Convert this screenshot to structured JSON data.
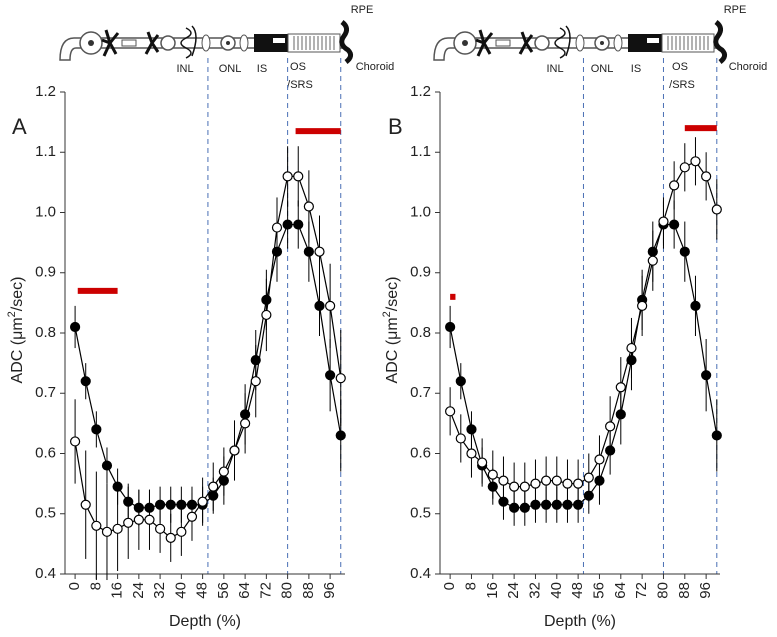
{
  "chart_data": [
    {
      "type": "line",
      "panel_label": "A",
      "xlabel": "Depth (%)",
      "ylabel_parts": [
        "ADC (μm",
        "2",
        "/sec)"
      ],
      "layer_labels": [
        "RPE",
        "INL",
        "ONL",
        "IS",
        "OS",
        "/SRS",
        "Choroid"
      ],
      "boundaries": [
        50,
        80,
        100
      ],
      "xlim": [
        -3.8,
        101.6
      ],
      "ylim": [
        0.4,
        1.2
      ],
      "xticks": [
        0,
        8,
        16,
        24,
        32,
        40,
        48,
        56,
        64,
        72,
        80,
        88,
        96
      ],
      "yticks": [
        0.4,
        0.5,
        0.6,
        0.7,
        0.8,
        0.9,
        {
          "value": 1,
          "label": "1.0"
        },
        1.1,
        1.2
      ],
      "x": [
        0,
        4,
        8,
        12,
        16,
        20,
        24,
        28,
        32,
        36,
        40,
        44,
        48,
        52,
        56,
        60,
        64,
        68,
        72,
        76,
        80,
        84,
        88,
        92,
        96,
        100
      ],
      "series": [
        {
          "marker": "filled",
          "color": "#000000",
          "values": [
            0.81,
            0.72,
            0.64,
            0.58,
            0.545,
            0.52,
            0.51,
            0.51,
            0.515,
            0.515,
            0.515,
            0.515,
            0.515,
            0.53,
            0.555,
            0.605,
            0.665,
            0.755,
            0.855,
            0.935,
            0.98,
            0.98,
            0.935,
            0.845,
            0.73,
            0.63
          ],
          "errors": [
            0.035,
            0.03,
            0.03,
            0.03,
            0.03,
            0.03,
            0.03,
            0.03,
            0.03,
            0.03,
            0.03,
            0.03,
            0.03,
            0.03,
            0.04,
            0.04,
            0.05,
            0.05,
            0.05,
            0.05,
            0.04,
            0.04,
            0.05,
            0.05,
            0.06,
            0.06
          ]
        },
        {
          "marker": "open",
          "color": "#000000",
          "values": [
            0.62,
            0.515,
            0.48,
            0.47,
            0.475,
            0.485,
            0.49,
            0.49,
            0.475,
            0.46,
            0.47,
            0.495,
            0.52,
            0.545,
            0.57,
            0.605,
            0.65,
            0.72,
            0.83,
            0.975,
            1.06,
            1.06,
            1.01,
            0.935,
            0.845,
            0.725
          ],
          "errors": [
            0.07,
            0.09,
            0.09,
            0.08,
            0.07,
            0.06,
            0.05,
            0.05,
            0.04,
            0.04,
            0.04,
            0.04,
            0.04,
            0.04,
            0.04,
            0.05,
            0.05,
            0.06,
            0.06,
            0.05,
            0.05,
            0.05,
            0.06,
            0.06,
            0.07,
            0.08
          ]
        }
      ],
      "significance_bars": {
        "color": "#cc0000",
        "ranges": [
          {
            "x": [
              1,
              16
            ],
            "y": 0.87
          },
          {
            "x": [
              83,
              100
            ],
            "y": 1.135
          }
        ]
      }
    },
    {
      "type": "line",
      "panel_label": "B",
      "xlabel": "Depth (%)",
      "ylabel_parts": [
        "ADC (μm",
        "2",
        "/sec)"
      ],
      "layer_labels": [
        "RPE",
        "INL",
        "ONL",
        "IS",
        "OS",
        "/SRS",
        "Choroid"
      ],
      "boundaries": [
        50,
        80,
        100
      ],
      "xlim": [
        -3.8,
        101.2
      ],
      "ylim": [
        0.4,
        1.2
      ],
      "xticks": [
        0,
        8,
        16,
        24,
        32,
        40,
        48,
        56,
        64,
        72,
        80,
        88,
        96
      ],
      "yticks": [
        0.4,
        0.5,
        0.6,
        0.7,
        0.8,
        0.9,
        {
          "value": 1,
          "label": "1.0"
        },
        1.1,
        1.2
      ],
      "x": [
        0,
        4,
        8,
        12,
        16,
        20,
        24,
        28,
        32,
        36,
        40,
        44,
        48,
        52,
        56,
        60,
        64,
        68,
        72,
        76,
        80,
        84,
        88,
        92,
        96,
        100
      ],
      "series": [
        {
          "marker": "filled",
          "color": "#000000",
          "values": [
            0.81,
            0.72,
            0.64,
            0.58,
            0.545,
            0.52,
            0.51,
            0.51,
            0.515,
            0.515,
            0.515,
            0.515,
            0.515,
            0.53,
            0.555,
            0.605,
            0.665,
            0.755,
            0.855,
            0.935,
            0.98,
            0.98,
            0.935,
            0.845,
            0.73,
            0.63
          ],
          "errors": [
            0.035,
            0.03,
            0.03,
            0.03,
            0.03,
            0.03,
            0.03,
            0.03,
            0.03,
            0.03,
            0.03,
            0.03,
            0.03,
            0.03,
            0.04,
            0.04,
            0.05,
            0.05,
            0.05,
            0.05,
            0.04,
            0.04,
            0.05,
            0.05,
            0.06,
            0.06
          ]
        },
        {
          "marker": "open",
          "color": "#000000",
          "values": [
            0.67,
            0.625,
            0.6,
            0.585,
            0.565,
            0.555,
            0.545,
            0.545,
            0.55,
            0.555,
            0.555,
            0.55,
            0.55,
            0.56,
            0.59,
            0.645,
            0.71,
            0.775,
            0.845,
            0.92,
            0.985,
            1.045,
            1.075,
            1.085,
            1.06,
            1.005
          ],
          "errors": [
            0.04,
            0.04,
            0.04,
            0.04,
            0.04,
            0.04,
            0.04,
            0.04,
            0.04,
            0.04,
            0.04,
            0.04,
            0.04,
            0.04,
            0.04,
            0.05,
            0.05,
            0.05,
            0.05,
            0.05,
            0.04,
            0.04,
            0.04,
            0.04,
            0.04,
            0.05
          ]
        }
      ],
      "significance_bars": {
        "color": "#cc0000",
        "ranges": [
          {
            "x": [
              0,
              2
            ],
            "y": 0.86
          },
          {
            "x": [
              88,
              100
            ],
            "y": 1.14
          }
        ]
      }
    }
  ]
}
